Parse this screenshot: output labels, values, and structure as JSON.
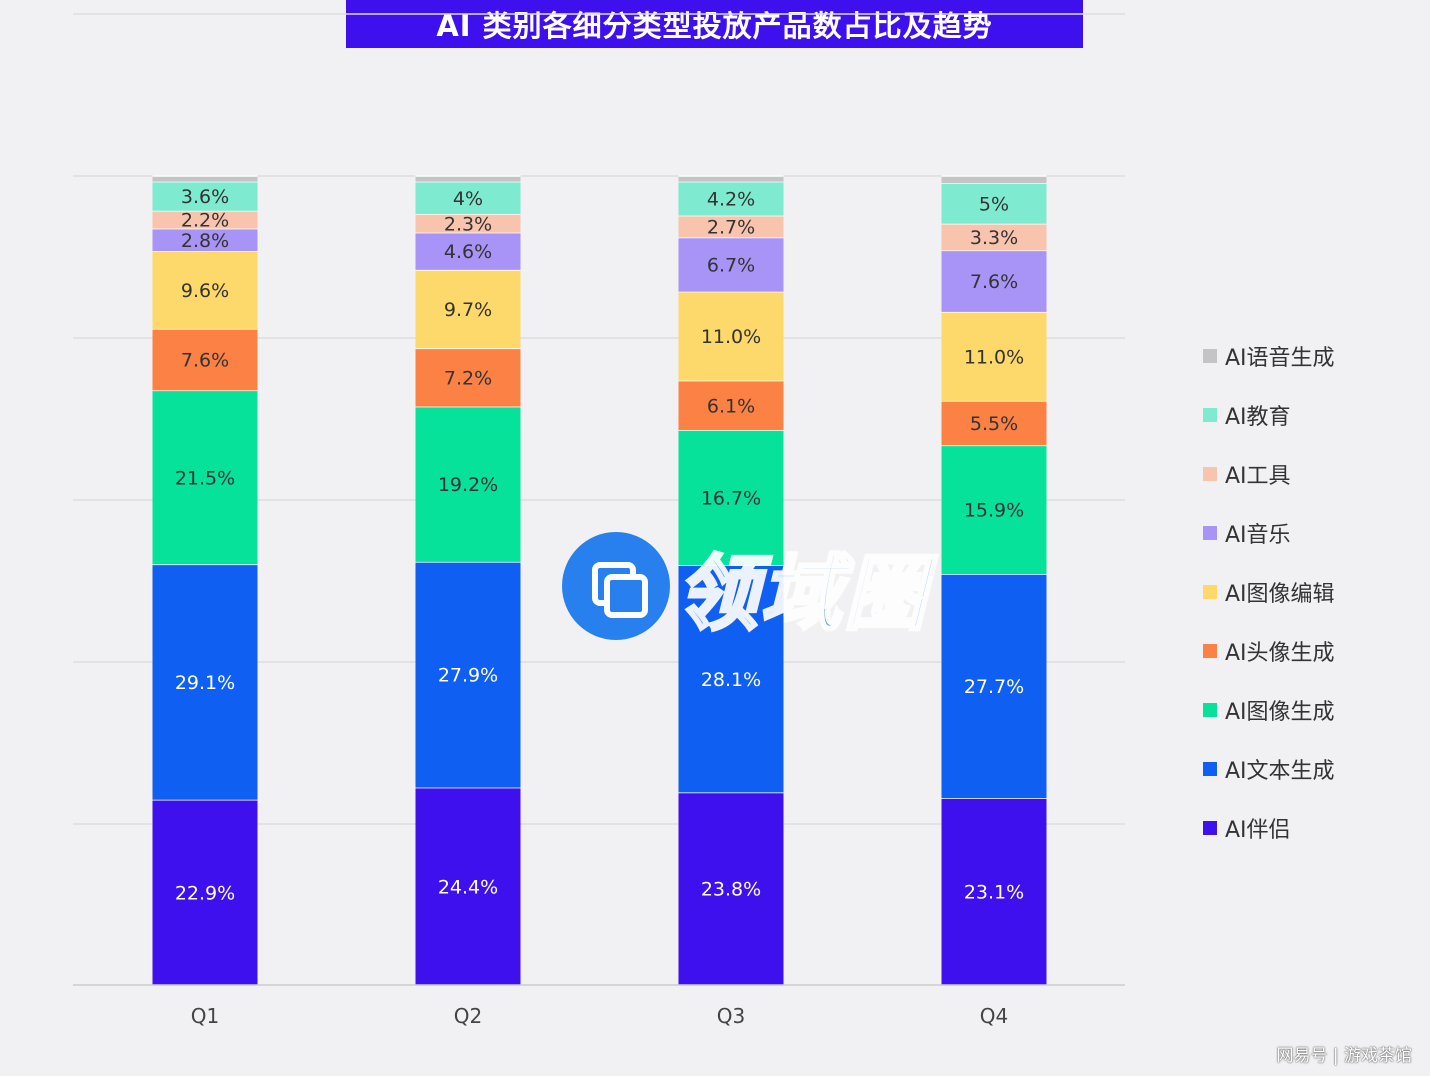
{
  "chart_data": {
    "type": "bar",
    "stacked": true,
    "title": "AI 类别各细分类型投放产品数占比及趋势",
    "categories": [
      "Q1",
      "Q2",
      "Q3",
      "Q4"
    ],
    "series": [
      {
        "name": "AI伴侣",
        "color": "#3f10ee",
        "labelColor": "#ffffff",
        "values": [
          22.9,
          24.4,
          23.8,
          23.1
        ],
        "labels": [
          "22.9%",
          "24.4%",
          "23.8%",
          "23.1%"
        ]
      },
      {
        "name": "AI文本生成",
        "color": "#0f5ff2",
        "labelColor": "#ffffff",
        "values": [
          29.1,
          27.9,
          28.1,
          27.7
        ],
        "labels": [
          "29.1%",
          "27.9%",
          "28.1%",
          "27.7%"
        ]
      },
      {
        "name": "AI图像生成",
        "color": "#06e29a",
        "labelColor": "#333333",
        "values": [
          21.5,
          19.2,
          16.7,
          15.9
        ],
        "labels": [
          "21.5%",
          "19.2%",
          "16.7%",
          "15.9%"
        ]
      },
      {
        "name": "AI头像生成",
        "color": "#fb8144",
        "labelColor": "#333333",
        "values": [
          7.6,
          7.2,
          6.1,
          5.5
        ],
        "labels": [
          "7.6%",
          "7.2%",
          "6.1%",
          "5.5%"
        ]
      },
      {
        "name": "AI图像编辑",
        "color": "#fdd86a",
        "labelColor": "#333333",
        "values": [
          9.6,
          9.7,
          11.0,
          11.0
        ],
        "labels": [
          "9.6%",
          "9.7%",
          "11.0%",
          "11.0%"
        ]
      },
      {
        "name": "AI音乐",
        "color": "#a894f6",
        "labelColor": "#333333",
        "values": [
          2.8,
          4.6,
          6.7,
          7.6
        ],
        "labels": [
          "2.8%",
          "4.6%",
          "6.7%",
          "7.6%"
        ]
      },
      {
        "name": "AI工具",
        "color": "#f9c4ad",
        "labelColor": "#333333",
        "values": [
          2.2,
          2.3,
          2.7,
          3.3
        ],
        "labels": [
          "2.2%",
          "2.3%",
          "2.7%",
          "3.3%"
        ]
      },
      {
        "name": "AI教育",
        "color": "#7eead0",
        "labelColor": "#333333",
        "values": [
          3.6,
          4.0,
          4.2,
          5.0
        ],
        "labels": [
          "3.6%",
          "4%",
          "4.2%",
          "5%"
        ]
      },
      {
        "name": "AI语音生成",
        "color": "#c4c4c4",
        "labelColor": "#333333",
        "values": [
          0.7,
          0.7,
          0.7,
          0.9
        ],
        "labels": [
          "",
          "",
          "",
          ""
        ]
      }
    ],
    "ylim": [
      0,
      100
    ],
    "grid": true,
    "legend": "right"
  },
  "watermark": {
    "text": "领域圈"
  },
  "source": "网易号 | 游戏茶馆"
}
